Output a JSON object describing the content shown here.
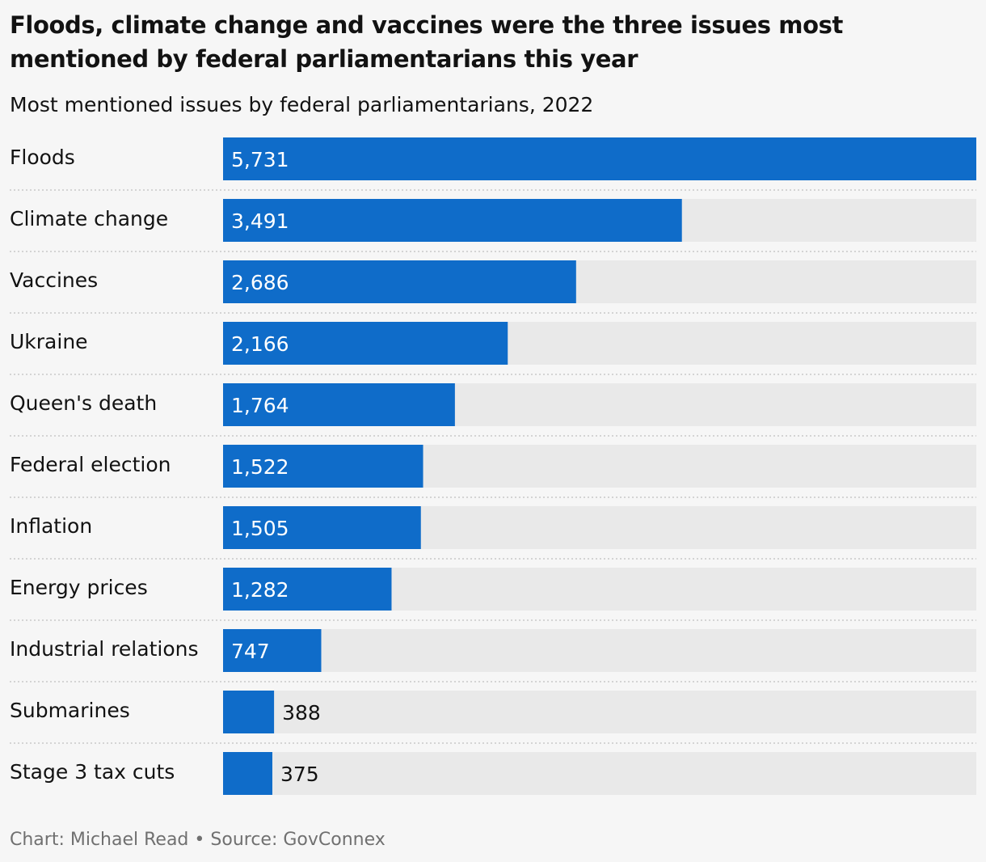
{
  "title": "Floods, climate change and vaccines were the three issues most mentioned by federal parliamentarians this year",
  "subtitle": "Most mentioned issues by federal parliamentarians, 2022",
  "footer": {
    "credit": "Chart: Michael Read",
    "separator": "•",
    "source": "Source: GovConnex"
  },
  "colors": {
    "bar": "#0f6cc9",
    "track": "#e9e9e9",
    "background": "#f6f6f6",
    "label_inside": "#ffffff",
    "label_outside": "#121212"
  },
  "chart_data": {
    "type": "bar",
    "orientation": "horizontal",
    "title": "Floods, climate change and vaccines were the three issues most mentioned by federal parliamentarians this year",
    "subtitle": "Most mentioned issues by federal parliamentarians, 2022",
    "categories": [
      "Floods",
      "Climate change",
      "Vaccines",
      "Ukraine",
      "Queen's death",
      "Federal election",
      "Inflation",
      "Energy prices",
      "Industrial relations",
      "Submarines",
      "Stage 3 tax cuts"
    ],
    "values": [
      5731,
      3491,
      2686,
      2166,
      1764,
      1522,
      1505,
      1282,
      747,
      388,
      375
    ],
    "value_labels": [
      "5,731",
      "3,491",
      "2,686",
      "2,166",
      "1,764",
      "1,522",
      "1,505",
      "1,282",
      "747",
      "388",
      "375"
    ],
    "xlim": [
      0,
      5731
    ],
    "xlabel": "",
    "ylabel": "",
    "grid": false,
    "legend": "none"
  }
}
